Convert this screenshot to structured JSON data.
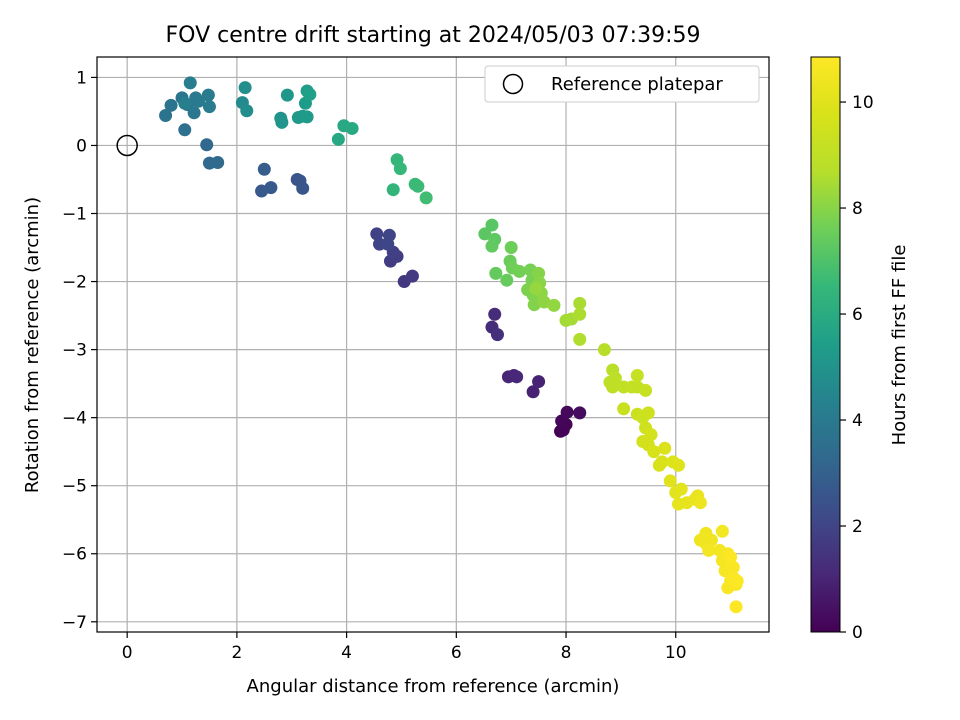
{
  "chart_data": {
    "type": "scatter",
    "title": "FOV centre drift starting at 2024/05/03 07:39:59",
    "xlabel": "Angular distance from reference (arcmin)",
    "ylabel": "Rotation from reference (arcmin)",
    "xlim": [
      -0.55,
      11.7
    ],
    "ylim": [
      -7.15,
      1.3
    ],
    "xticks": [
      0,
      2,
      4,
      6,
      8,
      10
    ],
    "yticks": [
      1,
      0,
      -1,
      -2,
      -3,
      -4,
      -5,
      -6,
      -7
    ],
    "grid": true,
    "legend": {
      "position": "top-right",
      "entries": [
        "Reference platepar"
      ]
    },
    "reference_point": {
      "x": 0,
      "y": 0,
      "label": "Reference platepar"
    },
    "colorbar": {
      "label": "Hours from first FF file",
      "range": [
        0,
        10.85
      ],
      "ticks": [
        0,
        2,
        4,
        6,
        8,
        10
      ],
      "colormap": "viridis"
    },
    "points": [
      {
        "x": 7.9,
        "y": -4.2,
        "c": 0.0
      },
      {
        "x": 7.95,
        "y": -4.18,
        "c": 0.05
      },
      {
        "x": 8.0,
        "y": -4.1,
        "c": 0.1
      },
      {
        "x": 7.92,
        "y": -4.05,
        "c": 0.15
      },
      {
        "x": 8.02,
        "y": -3.92,
        "c": 0.2
      },
      {
        "x": 8.25,
        "y": -3.93,
        "c": 0.3
      },
      {
        "x": 7.4,
        "y": -3.62,
        "c": 0.9
      },
      {
        "x": 7.5,
        "y": -3.47,
        "c": 0.95
      },
      {
        "x": 6.95,
        "y": -3.4,
        "c": 1.0
      },
      {
        "x": 7.05,
        "y": -3.38,
        "c": 1.05
      },
      {
        "x": 7.1,
        "y": -3.4,
        "c": 1.1
      },
      {
        "x": 6.7,
        "y": -2.48,
        "c": 1.2
      },
      {
        "x": 6.65,
        "y": -2.67,
        "c": 1.25
      },
      {
        "x": 6.75,
        "y": -2.78,
        "c": 1.3
      },
      {
        "x": 5.05,
        "y": -2.0,
        "c": 1.6
      },
      {
        "x": 5.2,
        "y": -1.92,
        "c": 1.65
      },
      {
        "x": 4.8,
        "y": -1.7,
        "c": 1.75
      },
      {
        "x": 4.92,
        "y": -1.63,
        "c": 1.8
      },
      {
        "x": 4.85,
        "y": -1.57,
        "c": 1.85
      },
      {
        "x": 4.55,
        "y": -1.3,
        "c": 1.9
      },
      {
        "x": 4.6,
        "y": -1.45,
        "c": 1.95
      },
      {
        "x": 4.78,
        "y": -1.32,
        "c": 2.0
      },
      {
        "x": 4.75,
        "y": -1.45,
        "c": 2.05
      },
      {
        "x": 3.1,
        "y": -0.5,
        "c": 2.5
      },
      {
        "x": 3.15,
        "y": -0.52,
        "c": 2.55
      },
      {
        "x": 3.2,
        "y": -0.63,
        "c": 2.6
      },
      {
        "x": 2.45,
        "y": -0.67,
        "c": 2.7
      },
      {
        "x": 2.62,
        "y": -0.62,
        "c": 2.75
      },
      {
        "x": 2.5,
        "y": -0.35,
        "c": 2.85
      },
      {
        "x": 1.45,
        "y": 0.01,
        "c": 3.3
      },
      {
        "x": 1.5,
        "y": -0.26,
        "c": 3.35
      },
      {
        "x": 1.65,
        "y": -0.25,
        "c": 3.4
      },
      {
        "x": 1.05,
        "y": 0.23,
        "c": 3.6
      },
      {
        "x": 0.7,
        "y": 0.44,
        "c": 3.7
      },
      {
        "x": 0.8,
        "y": 0.59,
        "c": 3.75
      },
      {
        "x": 1.0,
        "y": 0.7,
        "c": 3.8
      },
      {
        "x": 1.1,
        "y": 0.6,
        "c": 3.85
      },
      {
        "x": 1.22,
        "y": 0.48,
        "c": 3.9
      },
      {
        "x": 1.25,
        "y": 0.7,
        "c": 3.95
      },
      {
        "x": 1.3,
        "y": 0.65,
        "c": 4.0
      },
      {
        "x": 1.48,
        "y": 0.74,
        "c": 4.05
      },
      {
        "x": 1.5,
        "y": 0.57,
        "c": 4.1
      },
      {
        "x": 1.15,
        "y": 0.92,
        "c": 4.15
      },
      {
        "x": 1.05,
        "y": 0.62,
        "c": 4.2
      },
      {
        "x": 2.1,
        "y": 0.63,
        "c": 4.7
      },
      {
        "x": 2.18,
        "y": 0.51,
        "c": 4.75
      },
      {
        "x": 2.15,
        "y": 0.85,
        "c": 4.8
      },
      {
        "x": 2.8,
        "y": 0.4,
        "c": 5.0
      },
      {
        "x": 2.82,
        "y": 0.34,
        "c": 5.05
      },
      {
        "x": 2.92,
        "y": 0.74,
        "c": 5.1
      },
      {
        "x": 3.12,
        "y": 0.41,
        "c": 5.2
      },
      {
        "x": 3.2,
        "y": 0.43,
        "c": 5.25
      },
      {
        "x": 3.28,
        "y": 0.42,
        "c": 5.3
      },
      {
        "x": 3.25,
        "y": 0.62,
        "c": 5.35
      },
      {
        "x": 3.28,
        "y": 0.8,
        "c": 5.4
      },
      {
        "x": 3.33,
        "y": 0.75,
        "c": 5.45
      },
      {
        "x": 3.85,
        "y": 0.09,
        "c": 5.8
      },
      {
        "x": 3.95,
        "y": 0.29,
        "c": 5.85
      },
      {
        "x": 4.1,
        "y": 0.25,
        "c": 5.9
      },
      {
        "x": 4.85,
        "y": -0.65,
        "c": 6.4
      },
      {
        "x": 4.92,
        "y": -0.21,
        "c": 6.45
      },
      {
        "x": 4.98,
        "y": -0.34,
        "c": 6.5
      },
      {
        "x": 5.25,
        "y": -0.57,
        "c": 6.6
      },
      {
        "x": 5.3,
        "y": -0.6,
        "c": 6.65
      },
      {
        "x": 5.45,
        "y": -0.77,
        "c": 6.75
      },
      {
        "x": 6.65,
        "y": -1.17,
        "c": 7.2
      },
      {
        "x": 6.52,
        "y": -1.3,
        "c": 7.25
      },
      {
        "x": 6.7,
        "y": -1.38,
        "c": 7.3
      },
      {
        "x": 6.65,
        "y": -1.48,
        "c": 7.35
      },
      {
        "x": 6.72,
        "y": -1.88,
        "c": 7.4
      },
      {
        "x": 6.92,
        "y": -1.98,
        "c": 7.45
      },
      {
        "x": 6.98,
        "y": -1.7,
        "c": 7.5
      },
      {
        "x": 7.0,
        "y": -1.5,
        "c": 7.55
      },
      {
        "x": 7.02,
        "y": -1.8,
        "c": 7.6
      },
      {
        "x": 7.15,
        "y": -1.85,
        "c": 7.65
      },
      {
        "x": 7.35,
        "y": -1.83,
        "c": 7.7
      },
      {
        "x": 7.38,
        "y": -1.98,
        "c": 7.75
      },
      {
        "x": 7.3,
        "y": -2.12,
        "c": 7.8
      },
      {
        "x": 7.4,
        "y": -2.2,
        "c": 7.85
      },
      {
        "x": 7.42,
        "y": -2.34,
        "c": 7.9
      },
      {
        "x": 7.5,
        "y": -1.88,
        "c": 7.95
      },
      {
        "x": 7.52,
        "y": -2.02,
        "c": 8.0
      },
      {
        "x": 7.55,
        "y": -2.17,
        "c": 8.05
      },
      {
        "x": 7.6,
        "y": -2.3,
        "c": 8.1
      },
      {
        "x": 7.78,
        "y": -2.35,
        "c": 8.15
      },
      {
        "x": 7.45,
        "y": -2.1,
        "c": 8.2
      },
      {
        "x": 8.0,
        "y": -2.57,
        "c": 8.4
      },
      {
        "x": 8.1,
        "y": -2.55,
        "c": 8.45
      },
      {
        "x": 8.25,
        "y": -2.32,
        "c": 8.5
      },
      {
        "x": 8.25,
        "y": -2.48,
        "c": 8.55
      },
      {
        "x": 8.25,
        "y": -2.85,
        "c": 8.6
      },
      {
        "x": 8.7,
        "y": -3.0,
        "c": 8.8
      },
      {
        "x": 8.85,
        "y": -3.3,
        "c": 8.85
      },
      {
        "x": 8.8,
        "y": -3.48,
        "c": 8.9
      },
      {
        "x": 8.9,
        "y": -3.42,
        "c": 8.95
      },
      {
        "x": 8.85,
        "y": -3.55,
        "c": 9.0
      },
      {
        "x": 9.05,
        "y": -3.55,
        "c": 9.05
      },
      {
        "x": 9.2,
        "y": -3.55,
        "c": 9.1
      },
      {
        "x": 9.3,
        "y": -3.55,
        "c": 9.15
      },
      {
        "x": 9.3,
        "y": -3.38,
        "c": 9.2
      },
      {
        "x": 9.45,
        "y": -3.6,
        "c": 9.25
      },
      {
        "x": 9.05,
        "y": -3.87,
        "c": 9.3
      },
      {
        "x": 9.3,
        "y": -3.95,
        "c": 9.35
      },
      {
        "x": 9.4,
        "y": -4.0,
        "c": 9.4
      },
      {
        "x": 9.5,
        "y": -3.93,
        "c": 9.45
      },
      {
        "x": 9.45,
        "y": -4.15,
        "c": 9.5
      },
      {
        "x": 9.4,
        "y": -4.35,
        "c": 9.55
      },
      {
        "x": 9.5,
        "y": -4.4,
        "c": 9.6
      },
      {
        "x": 9.55,
        "y": -4.25,
        "c": 9.65
      },
      {
        "x": 9.6,
        "y": -4.5,
        "c": 9.7
      },
      {
        "x": 9.7,
        "y": -4.7,
        "c": 9.75
      },
      {
        "x": 9.75,
        "y": -4.65,
        "c": 9.8
      },
      {
        "x": 9.8,
        "y": -4.45,
        "c": 9.85
      },
      {
        "x": 9.95,
        "y": -4.65,
        "c": 9.9
      },
      {
        "x": 10.05,
        "y": -4.7,
        "c": 9.95
      },
      {
        "x": 9.9,
        "y": -4.93,
        "c": 10.0
      },
      {
        "x": 10.0,
        "y": -5.1,
        "c": 10.05
      },
      {
        "x": 10.1,
        "y": -5.05,
        "c": 10.1
      },
      {
        "x": 10.05,
        "y": -5.27,
        "c": 10.15
      },
      {
        "x": 10.2,
        "y": -5.25,
        "c": 10.2
      },
      {
        "x": 10.35,
        "y": -5.2,
        "c": 10.25
      },
      {
        "x": 10.4,
        "y": -5.15,
        "c": 10.3
      },
      {
        "x": 10.45,
        "y": -5.25,
        "c": 10.35
      },
      {
        "x": 10.45,
        "y": -5.8,
        "c": 10.4
      },
      {
        "x": 10.55,
        "y": -5.85,
        "c": 10.45
      },
      {
        "x": 10.55,
        "y": -5.7,
        "c": 10.5
      },
      {
        "x": 10.65,
        "y": -5.8,
        "c": 10.5
      },
      {
        "x": 10.6,
        "y": -5.95,
        "c": 10.55
      },
      {
        "x": 10.85,
        "y": -5.67,
        "c": 10.55
      },
      {
        "x": 10.8,
        "y": -5.95,
        "c": 10.6
      },
      {
        "x": 10.85,
        "y": -6.1,
        "c": 10.6
      },
      {
        "x": 10.9,
        "y": -6.25,
        "c": 10.65
      },
      {
        "x": 10.95,
        "y": -6.0,
        "c": 10.65
      },
      {
        "x": 11.0,
        "y": -6.4,
        "c": 10.7
      },
      {
        "x": 10.95,
        "y": -6.5,
        "c": 10.7
      },
      {
        "x": 11.05,
        "y": -6.2,
        "c": 10.75
      },
      {
        "x": 11.1,
        "y": -6.45,
        "c": 10.75
      },
      {
        "x": 11.05,
        "y": -6.35,
        "c": 10.8
      },
      {
        "x": 11.12,
        "y": -6.4,
        "c": 10.8
      },
      {
        "x": 11.0,
        "y": -6.05,
        "c": 10.82
      },
      {
        "x": 11.1,
        "y": -6.78,
        "c": 10.85
      }
    ]
  }
}
